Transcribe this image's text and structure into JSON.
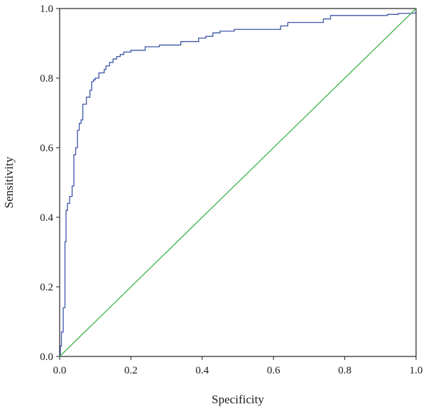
{
  "chart_data": {
    "type": "line",
    "title": "",
    "xlabel": "Specificity",
    "ylabel": "Sensitivity",
    "xlim": [
      0,
      1
    ],
    "ylim": [
      0,
      1
    ],
    "x_ticks": [
      "0.0",
      "0.2",
      "0.4",
      "0.6",
      "0.8",
      "1.0"
    ],
    "y_ticks": [
      "0.0",
      "0.2",
      "0.4",
      "0.6",
      "0.8",
      "1.0"
    ],
    "grid": false,
    "legend": "none",
    "series": [
      {
        "color": "#3d55a8",
        "x": [
          0.0,
          0.002,
          0.002,
          0.005,
          0.005,
          0.01,
          0.01,
          0.015,
          0.015,
          0.018,
          0.018,
          0.022,
          0.022,
          0.028,
          0.028,
          0.035,
          0.035,
          0.04,
          0.04,
          0.045,
          0.045,
          0.05,
          0.05,
          0.055,
          0.055,
          0.06,
          0.06,
          0.065,
          0.065,
          0.075,
          0.075,
          0.085,
          0.085,
          0.09,
          0.09,
          0.095,
          0.095,
          0.1,
          0.1,
          0.11,
          0.11,
          0.125,
          0.125,
          0.13,
          0.13,
          0.14,
          0.14,
          0.15,
          0.15,
          0.16,
          0.16,
          0.17,
          0.17,
          0.18,
          0.18,
          0.2,
          0.2,
          0.24,
          0.24,
          0.28,
          0.28,
          0.34,
          0.34,
          0.39,
          0.39,
          0.41,
          0.41,
          0.43,
          0.43,
          0.45,
          0.45,
          0.49,
          0.49,
          0.62,
          0.62,
          0.64,
          0.64,
          0.74,
          0.74,
          0.76,
          0.76,
          0.92,
          0.92,
          0.95,
          0.95,
          0.99,
          1.0
        ],
        "values": [
          0.0,
          0.0,
          0.03,
          0.03,
          0.07,
          0.07,
          0.14,
          0.14,
          0.33,
          0.33,
          0.42,
          0.42,
          0.44,
          0.44,
          0.46,
          0.46,
          0.49,
          0.49,
          0.58,
          0.58,
          0.6,
          0.6,
          0.65,
          0.65,
          0.67,
          0.67,
          0.68,
          0.68,
          0.725,
          0.725,
          0.745,
          0.745,
          0.765,
          0.765,
          0.79,
          0.79,
          0.795,
          0.795,
          0.8,
          0.8,
          0.815,
          0.815,
          0.825,
          0.825,
          0.835,
          0.835,
          0.845,
          0.845,
          0.855,
          0.855,
          0.862,
          0.862,
          0.868,
          0.868,
          0.875,
          0.875,
          0.88,
          0.88,
          0.89,
          0.89,
          0.895,
          0.895,
          0.905,
          0.905,
          0.915,
          0.915,
          0.92,
          0.92,
          0.93,
          0.93,
          0.935,
          0.935,
          0.94,
          0.94,
          0.95,
          0.95,
          0.96,
          0.96,
          0.97,
          0.97,
          0.98,
          0.98,
          0.983,
          0.983,
          0.986,
          0.986,
          0.988
        ]
      },
      {
        "color": "#3db34a",
        "x": [
          0,
          1
        ],
        "values": [
          0,
          1
        ]
      }
    ]
  }
}
